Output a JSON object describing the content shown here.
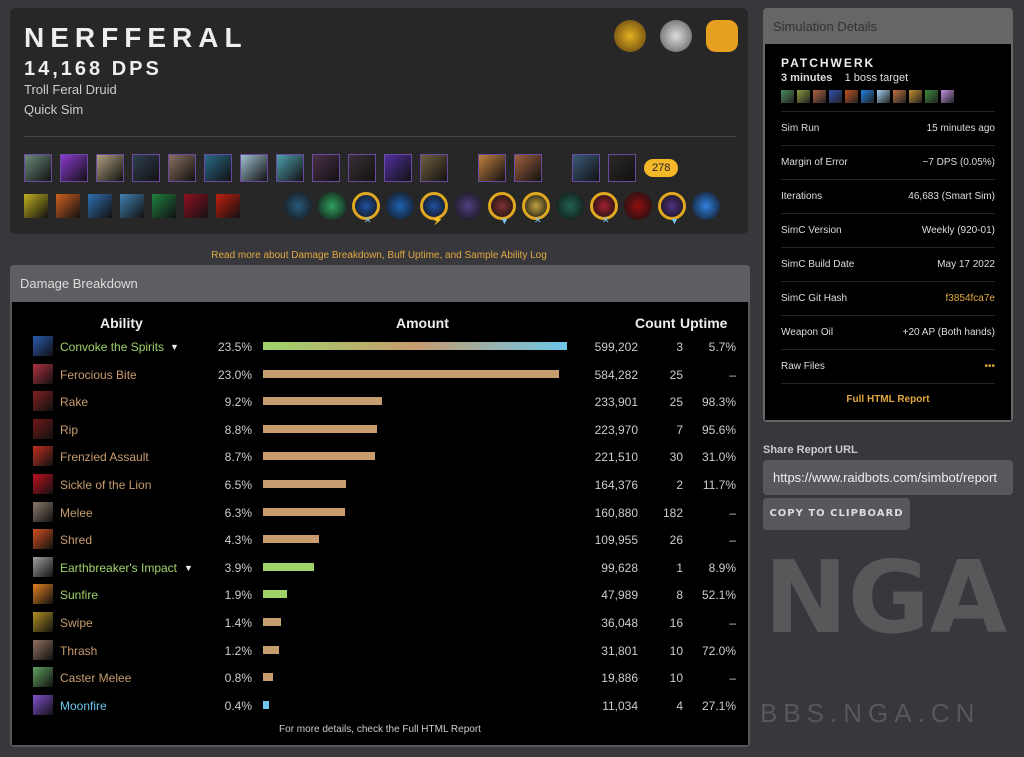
{
  "header": {
    "character": "NERFFERAL",
    "dps": "14,168 DPS",
    "spec": "Troll Feral Druid",
    "sim_type": "Quick Sim",
    "logos": [
      "wow-logo-icon",
      "armory-icon",
      "raidbots-icon"
    ],
    "item_level": "278",
    "gear_colors": [
      "#6a8a7a",
      "#8a3ad0",
      "#b0a080",
      "#304050",
      "#8a7060",
      "#2a6a8a",
      "#a0c0d0",
      "#50a0b0",
      "#4a3048",
      "#3a3038",
      "#5030a0",
      "#706040",
      "#c08040",
      "#a06040",
      "#3a5a7a",
      "#2a2a2a"
    ],
    "talent_colors": [
      "#c0b020",
      "#d06020",
      "#3070b0",
      "#4080b0",
      "#208040",
      "#901020",
      "#c02010"
    ],
    "soulbind": [
      {
        "c": "#2a5a7a",
        "g": false,
        "m": ""
      },
      {
        "c": "#30a060",
        "g": false,
        "m": ""
      },
      {
        "c": "#2050a0",
        "g": true,
        "m": "✕"
      },
      {
        "c": "#2060b0",
        "g": false,
        "m": ""
      },
      {
        "c": "#2050a0",
        "g": true,
        "m": "⚡"
      },
      {
        "c": "#504080",
        "g": false,
        "m": ""
      },
      {
        "c": "#803030",
        "g": true,
        "m": "▼"
      },
      {
        "c": "#c0a040",
        "g": true,
        "m": "✕"
      },
      {
        "c": "#206050",
        "g": false,
        "m": ""
      },
      {
        "c": "#a02030",
        "g": true,
        "m": "✕"
      },
      {
        "c": "#901010",
        "g": false,
        "m": ""
      },
      {
        "c": "#503080",
        "g": true,
        "m": "▼"
      },
      {
        "c": "#3080e0",
        "g": false,
        "m": ""
      }
    ]
  },
  "read_more": "Read more about Damage Breakdown, Buff Uptime, and Sample Ability Log",
  "damage": {
    "title": "Damage Breakdown",
    "columns": [
      "Ability",
      "Amount",
      "Count",
      "Uptime"
    ],
    "footer": "For more details, check the Full HTML Report",
    "colors": {
      "physical": "#c79c6e",
      "nature": "#9fd36a",
      "arcane": "#6cc6ea"
    },
    "rows": [
      {
        "name": "Convoke the Spirits",
        "pct": "23.5%",
        "amount": 599202,
        "amount_text": "599,202",
        "count": "3",
        "uptime": "5.7%",
        "school": "mixed",
        "expand": true,
        "icon": "#2a5ab0"
      },
      {
        "name": "Ferocious Bite",
        "pct": "23.0%",
        "amount": 584282,
        "amount_text": "584,282",
        "count": "25",
        "uptime": "–",
        "school": "physical",
        "icon": "#b03040"
      },
      {
        "name": "Rake",
        "pct": "9.2%",
        "amount": 233901,
        "amount_text": "233,901",
        "count": "25",
        "uptime": "98.3%",
        "school": "physical",
        "icon": "#802020"
      },
      {
        "name": "Rip",
        "pct": "8.8%",
        "amount": 223970,
        "amount_text": "223,970",
        "count": "7",
        "uptime": "95.6%",
        "school": "physical",
        "icon": "#701818"
      },
      {
        "name": "Frenzied Assault",
        "pct": "8.7%",
        "amount": 221510,
        "amount_text": "221,510",
        "count": "30",
        "uptime": "31.0%",
        "school": "physical",
        "icon": "#c03020"
      },
      {
        "name": "Sickle of the Lion",
        "pct": "6.5%",
        "amount": 164376,
        "amount_text": "164,376",
        "count": "2",
        "uptime": "11.7%",
        "school": "physical",
        "icon": "#c01020"
      },
      {
        "name": "Melee",
        "pct": "6.3%",
        "amount": 160880,
        "amount_text": "160,880",
        "count": "182",
        "uptime": "–",
        "school": "physical",
        "icon": "#8a7a6a"
      },
      {
        "name": "Shred",
        "pct": "4.3%",
        "amount": 109955,
        "amount_text": "109,955",
        "count": "26",
        "uptime": "–",
        "school": "physical",
        "icon": "#d05020"
      },
      {
        "name": "Earthbreaker's Impact",
        "pct": "3.9%",
        "amount": 99628,
        "amount_text": "99,628",
        "count": "1",
        "uptime": "8.9%",
        "school": "nature",
        "expand": true,
        "icon": "#a0a0a0"
      },
      {
        "name": "Sunfire",
        "pct": "1.9%",
        "amount": 47989,
        "amount_text": "47,989",
        "count": "8",
        "uptime": "52.1%",
        "school": "nature",
        "icon": "#e08020"
      },
      {
        "name": "Swipe",
        "pct": "1.4%",
        "amount": 36048,
        "amount_text": "36,048",
        "count": "16",
        "uptime": "–",
        "school": "physical",
        "icon": "#b09020"
      },
      {
        "name": "Thrash",
        "pct": "1.2%",
        "amount": 31801,
        "amount_text": "31,801",
        "count": "10",
        "uptime": "72.0%",
        "school": "physical",
        "icon": "#907060"
      },
      {
        "name": "Caster Melee",
        "pct": "0.8%",
        "amount": 19886,
        "amount_text": "19,886",
        "count": "10",
        "uptime": "–",
        "school": "physical",
        "icon": "#60a060"
      },
      {
        "name": "Moonfire",
        "pct": "0.4%",
        "amount": 11034,
        "amount_text": "11,034",
        "count": "4",
        "uptime": "27.1%",
        "school": "arcane",
        "icon": "#8050d0"
      }
    ]
  },
  "sim": {
    "title": "Simulation Details",
    "fight": "PATCHWERK",
    "duration": "3 minutes",
    "targets": "1 boss target",
    "buff_colors": [
      "#4a8a5a",
      "#8a9a3a",
      "#b06040",
      "#3050b0",
      "#c05020",
      "#2080e0",
      "#a0d0f0",
      "#c07040",
      "#c09030",
      "#3a8a3a",
      "#c090e0"
    ],
    "rows": [
      {
        "k": "Sim Run",
        "v": "15 minutes ago"
      },
      {
        "k": "Margin of Error",
        "v": "~7 DPS (0.05%)"
      },
      {
        "k": "Iterations",
        "v": "46,683 (Smart Sim)"
      },
      {
        "k": "SimC Version",
        "v": "Weekly (920-01)"
      },
      {
        "k": "SimC Build Date",
        "v": "May 17 2022"
      },
      {
        "k": "SimC Git Hash",
        "v": "f3854fca7e",
        "link": true
      },
      {
        "k": "Weapon Oil",
        "v": "+20 AP (Both hands)"
      },
      {
        "k": "Raw Files",
        "v": "•••",
        "link": true
      }
    ],
    "full_report": "Full HTML Report"
  },
  "share": {
    "label": "Share Report URL",
    "url": "https://www.raidbots.com/simbot/report",
    "copy": "COPY TO CLIPBOARD"
  },
  "watermark": {
    "big": "NGA",
    "small": "BBS.NGA.CN"
  }
}
